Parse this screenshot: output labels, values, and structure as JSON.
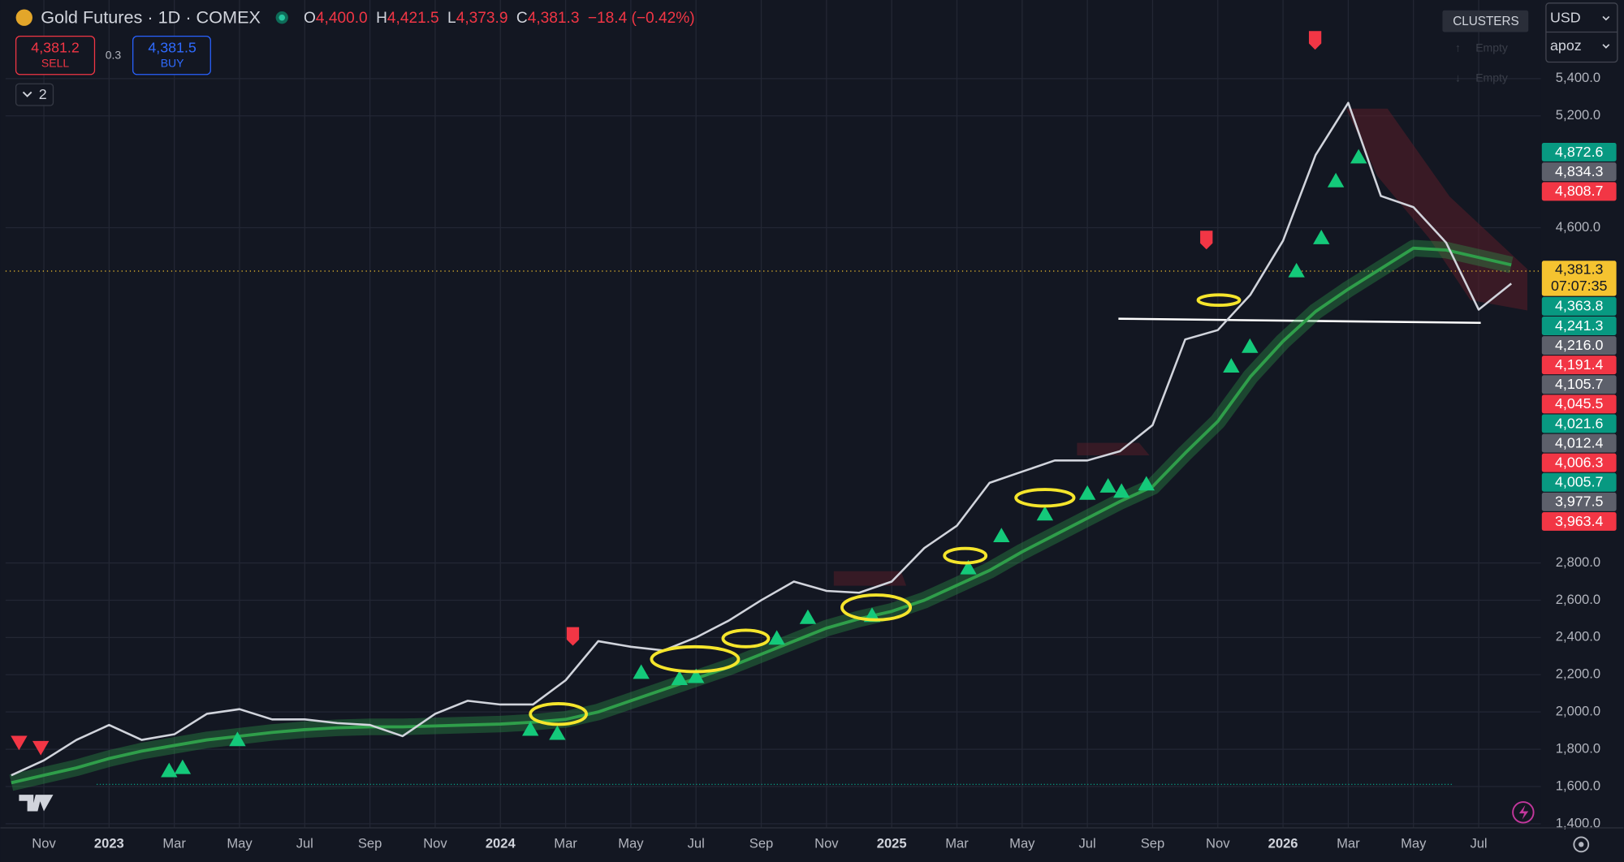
{
  "header": {
    "symbol": "Gold Futures · 1D · COMEX",
    "open_label": "O",
    "open": "4,400.0",
    "high_label": "H",
    "high": "4,421.5",
    "low_label": "L",
    "low": "4,373.9",
    "close_label": "C",
    "close": "4,381.3",
    "change": "−18.4 (−0.42%)"
  },
  "trade": {
    "sell_price": "4,381.2",
    "sell": "SELL",
    "spread": "0.3",
    "buy_price": "4,381.5",
    "buy": "BUY",
    "layers": "2"
  },
  "panel": {
    "clusters": "CLUSTERS",
    "up": "Empty",
    "down": "Empty",
    "currency": "USD",
    "account": "apoz"
  },
  "price_labels_top": [
    {
      "text": "4,872.6",
      "color": "#089981"
    },
    {
      "text": "4,834.3",
      "color": "#5d606b"
    },
    {
      "text": "4,808.7",
      "color": "#f23645"
    }
  ],
  "current": {
    "price": "4,381.3",
    "countdown": "07:07:35",
    "color": "#f5c330"
  },
  "price_labels": [
    {
      "text": "4,363.8",
      "color": "#089981"
    },
    {
      "text": "4,241.3",
      "color": "#089981"
    },
    {
      "text": "4,216.0",
      "color": "#5d606b"
    },
    {
      "text": "4,191.4",
      "color": "#f23645"
    },
    {
      "text": "4,105.7",
      "color": "#5d606b"
    },
    {
      "text": "4,045.5",
      "color": "#f23645"
    },
    {
      "text": "4,021.6",
      "color": "#089981"
    },
    {
      "text": "4,012.4",
      "color": "#5d606b"
    },
    {
      "text": "4,006.3",
      "color": "#f23645"
    },
    {
      "text": "4,005.7",
      "color": "#089981"
    },
    {
      "text": "3,977.5",
      "color": "#5d606b"
    },
    {
      "text": "3,963.4",
      "color": "#f23645"
    }
  ],
  "chart_data": {
    "type": "line",
    "categories": [
      null,
      "Nov",
      null,
      "2023",
      null,
      "Mar",
      null,
      "May",
      null,
      "Jul",
      null,
      "Sep",
      null,
      "Nov",
      null,
      "2024",
      null,
      "Mar",
      null,
      "May",
      null,
      "Jul",
      null,
      "Sep",
      null,
      "Nov",
      null,
      "2025",
      null,
      "Mar",
      null,
      "May",
      null,
      "Jul",
      null,
      "Sep",
      null,
      "Nov",
      null,
      "2026",
      null,
      "Mar",
      null,
      "May",
      null,
      "Jul",
      null
    ],
    "series": [
      {
        "color": "#2f9e4a",
        "values": [
          1620,
          1660,
          1700,
          1750,
          1790,
          1820,
          1850,
          1870,
          1890,
          1905,
          1915,
          1920,
          1920,
          1925,
          1930,
          1935,
          1945,
          1960,
          2000,
          2060,
          2120,
          2180,
          2240,
          2310,
          2380,
          2450,
          2500,
          2540,
          2600,
          2680,
          2760,
          2860,
          2950,
          3040,
          3130,
          3210,
          3390,
          3560,
          3800,
          3990,
          4150,
          4270,
          4380,
          4490,
          4480,
          4440,
          4400
        ]
      },
      {
        "color": "#d1d4dc",
        "values": [
          1660,
          1740,
          1850,
          1930,
          1850,
          1880,
          1990,
          2015,
          1960,
          1960,
          1940,
          1930,
          1870,
          1990,
          2060,
          2040,
          2040,
          2170,
          2380,
          2350,
          2330,
          2400,
          2490,
          2600,
          2700,
          2650,
          2640,
          2700,
          2880,
          3000,
          3230,
          3290,
          3350,
          3350,
          3400,
          3540,
          4000,
          4050,
          4240,
          4530,
          4990,
          5270,
          4770,
          4710,
          4520,
          4160,
          4300
        ]
      }
    ],
    "ylim": [
      1378,
      5822
    ],
    "yticks": [
      {
        "value": 1400,
        "label": "1,400.0"
      },
      {
        "value": 1600,
        "label": "1,600.0"
      },
      {
        "value": 1800,
        "label": "1,800.0"
      },
      {
        "value": 2000,
        "label": "2,000.0"
      },
      {
        "value": 2200,
        "label": "2,200.0"
      },
      {
        "value": 2400,
        "label": "2,400.0"
      },
      {
        "value": 2600,
        "label": "2,600.0"
      },
      {
        "value": 2800,
        "label": "2,800.0"
      },
      {
        "value": 4600,
        "label": "4,600.0"
      },
      {
        "value": 5200,
        "label": "5,200.0"
      },
      {
        "value": 5400,
        "label": "5,400.0"
      }
    ],
    "grid": true
  }
}
